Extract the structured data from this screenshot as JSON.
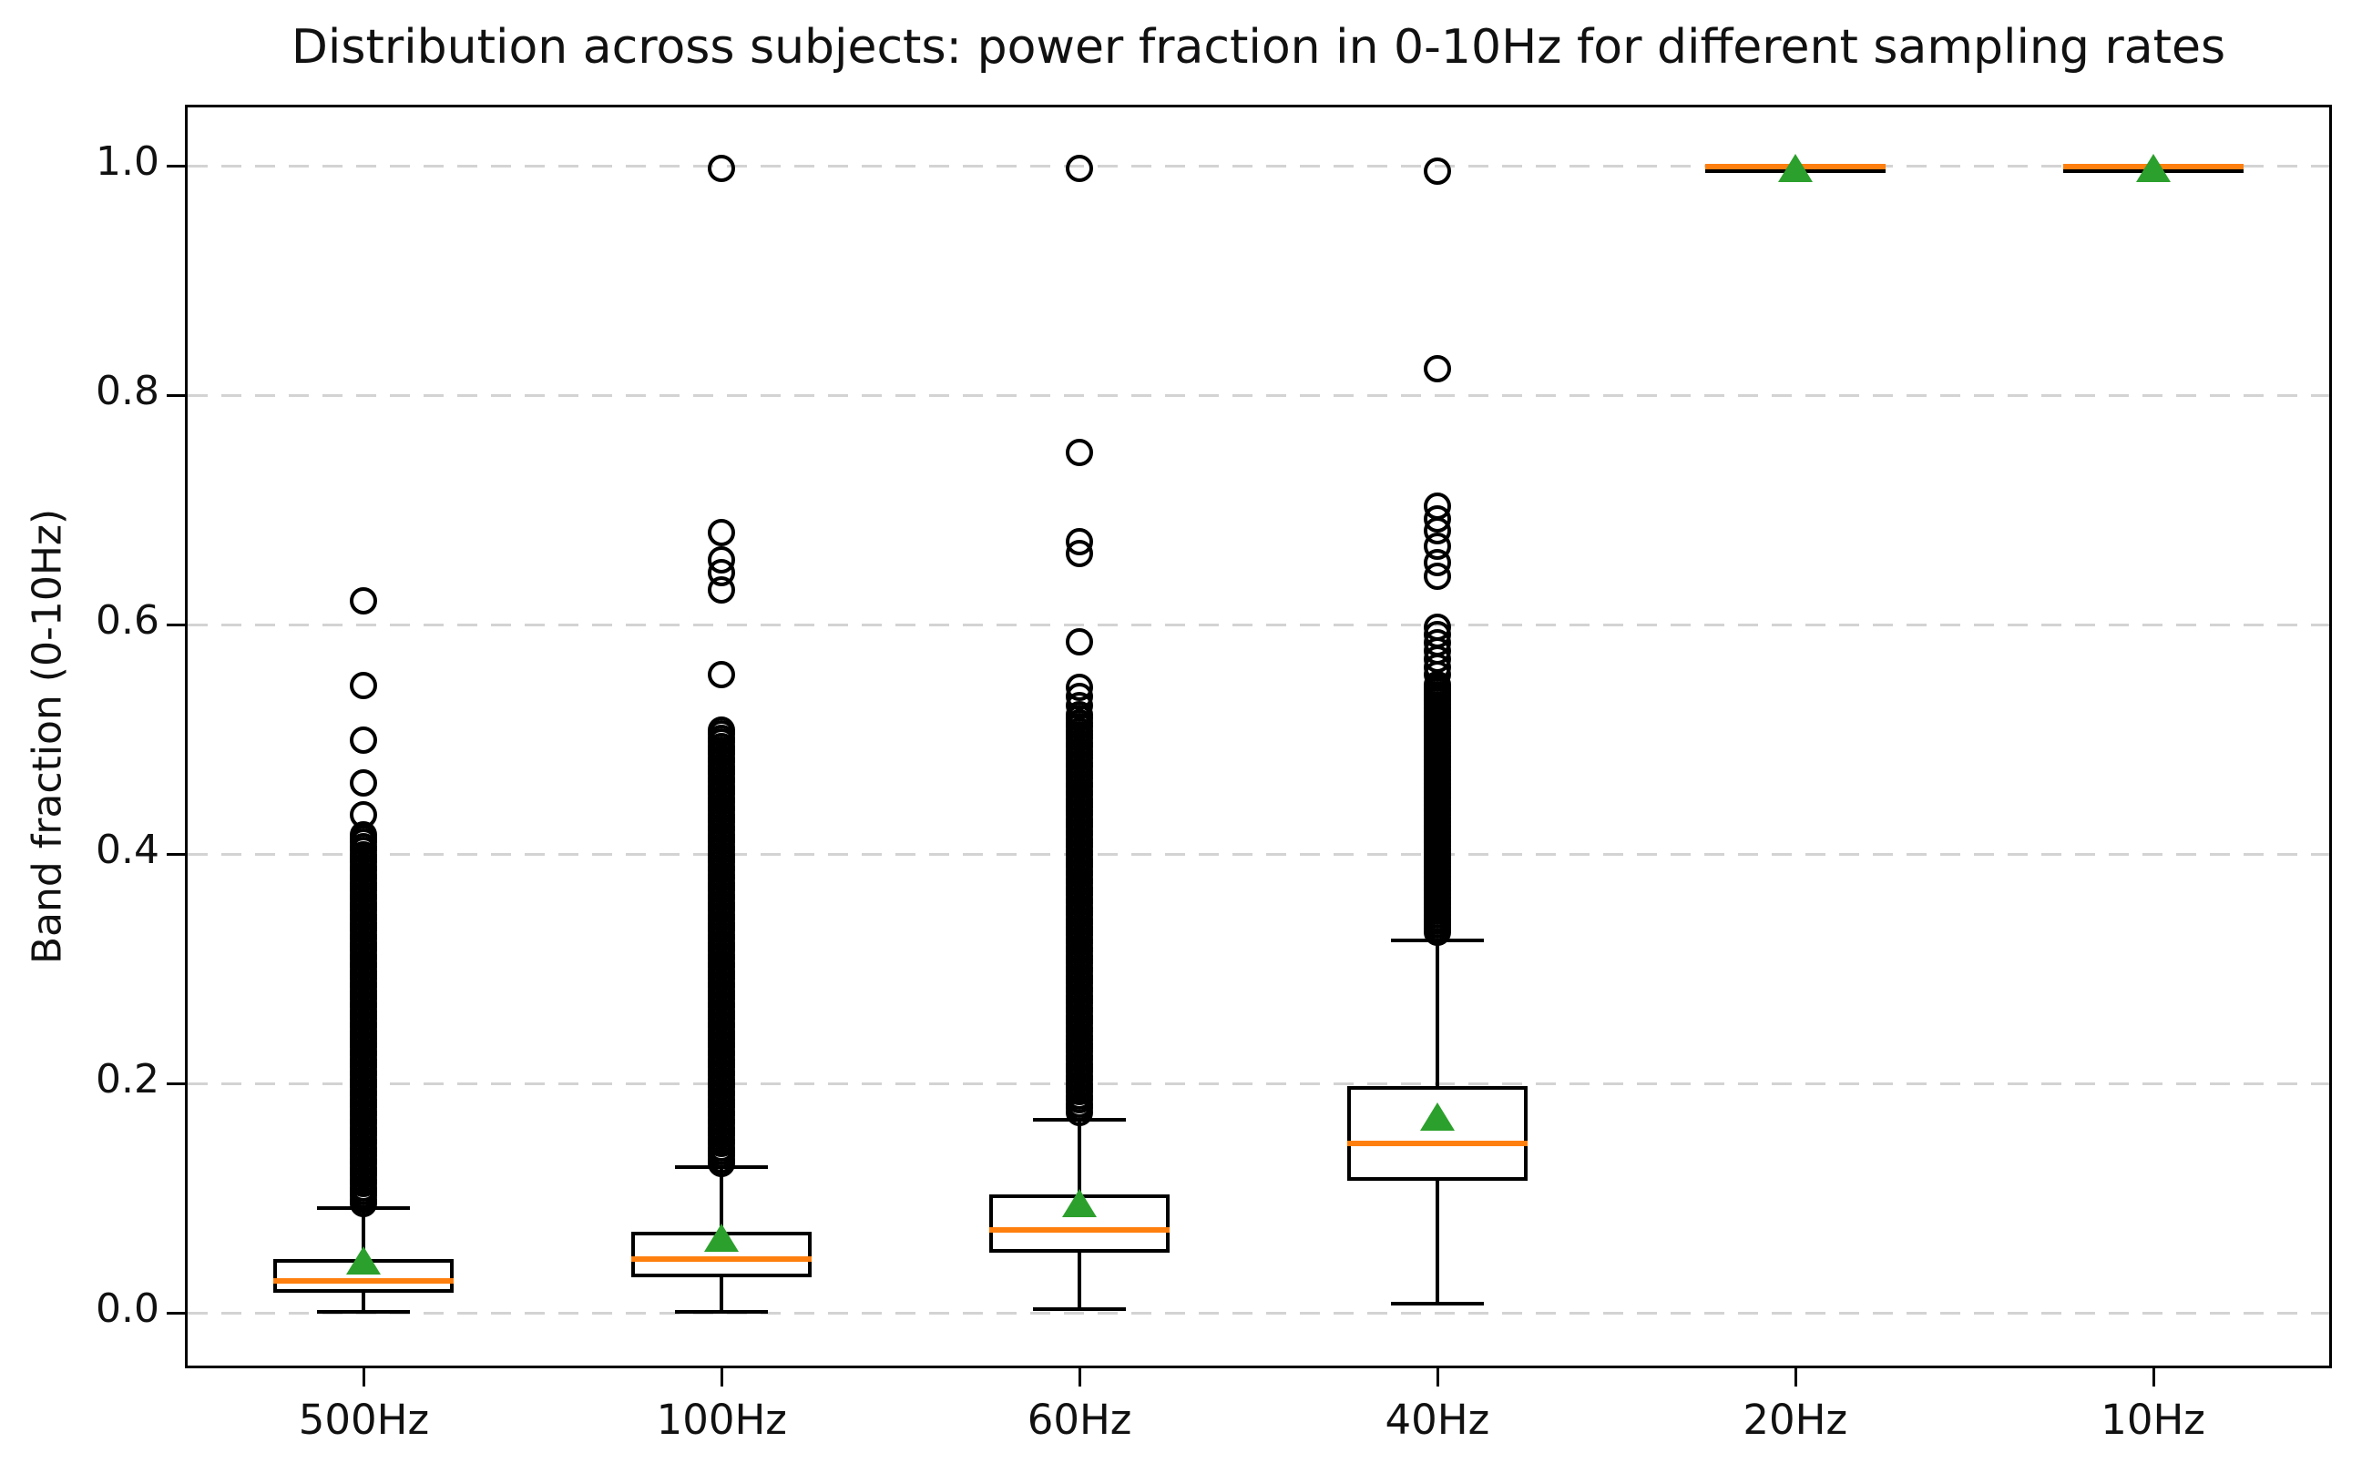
{
  "title": "Distribution across subjects: power fraction in 0-10Hz for different sampling rates",
  "ylabel": "Band fraction (0-10Hz)",
  "colors": {
    "median": "#ff7f0e",
    "mean": "#2ca02c",
    "box_edge": "#000000",
    "grid": "#d3d3d3",
    "text": "#111111",
    "background": "#ffffff"
  },
  "chart_data": {
    "type": "boxplot",
    "title": "Distribution across subjects: power fraction in 0-10Hz for different sampling rates",
    "ylabel": "Band fraction (0-10Hz)",
    "categories": [
      "500Hz",
      "100Hz",
      "60Hz",
      "40Hz",
      "20Hz",
      "10Hz"
    ],
    "yticks": [
      0.0,
      0.2,
      0.4,
      0.6,
      0.8,
      1.0
    ],
    "ylim": [
      -0.048,
      1.053
    ],
    "grid": "horizontal-dashed",
    "legend": "none",
    "mean_marker": "green-triangle",
    "median_color": "#ff7f0e",
    "series": [
      {
        "label": "500Hz",
        "whislo": 0.001,
        "q1": 0.0175,
        "med": 0.028,
        "q3": 0.047,
        "whishi": 0.091,
        "mean": 0.045,
        "outliers": [
          0.621,
          0.547,
          0.499,
          0.462,
          0.434
        ],
        "outlier_columns": [
          {
            "from": 0.095,
            "to": 0.42,
            "step": 0.0035
          }
        ]
      },
      {
        "label": "100Hz",
        "whislo": 0.001,
        "q1": 0.031,
        "med": 0.047,
        "q3": 0.071,
        "whishi": 0.127,
        "mean": 0.065,
        "outliers": [
          0.998,
          0.68,
          0.656,
          0.645,
          0.63,
          0.556
        ],
        "outlier_columns": [
          {
            "from": 0.13,
            "to": 0.51,
            "step": 0.0035
          }
        ]
      },
      {
        "label": "60Hz",
        "whislo": 0.003,
        "q1": 0.052,
        "med": 0.072,
        "q3": 0.103,
        "whishi": 0.168,
        "mean": 0.095,
        "outliers": [
          0.998,
          0.75,
          0.672,
          0.662,
          0.585,
          0.545,
          0.537,
          0.529
        ],
        "outlier_columns": [
          {
            "from": 0.175,
            "to": 0.523,
            "step": 0.0035
          }
        ]
      },
      {
        "label": "40Hz",
        "whislo": 0.008,
        "q1": 0.115,
        "med": 0.148,
        "q3": 0.198,
        "whishi": 0.325,
        "mean": 0.171,
        "outliers": [
          0.995,
          0.823,
          0.703,
          0.692,
          0.682,
          0.668,
          0.654,
          0.642
        ],
        "outlier_columns": [
          {
            "from": 0.332,
            "to": 0.55,
            "step": 0.003
          },
          {
            "from": 0.556,
            "to": 0.598,
            "step": 0.007
          }
        ]
      },
      {
        "label": "20Hz",
        "whislo": 0.995,
        "q1": 0.997,
        "med": 0.9995,
        "q3": 1.0,
        "whishi": 1.0,
        "mean": 0.998,
        "outliers": [],
        "outlier_columns": []
      },
      {
        "label": "10Hz",
        "whislo": 0.995,
        "q1": 0.997,
        "med": 0.9995,
        "q3": 1.0,
        "whishi": 1.0,
        "mean": 0.998,
        "outliers": [],
        "outlier_columns": []
      }
    ]
  }
}
